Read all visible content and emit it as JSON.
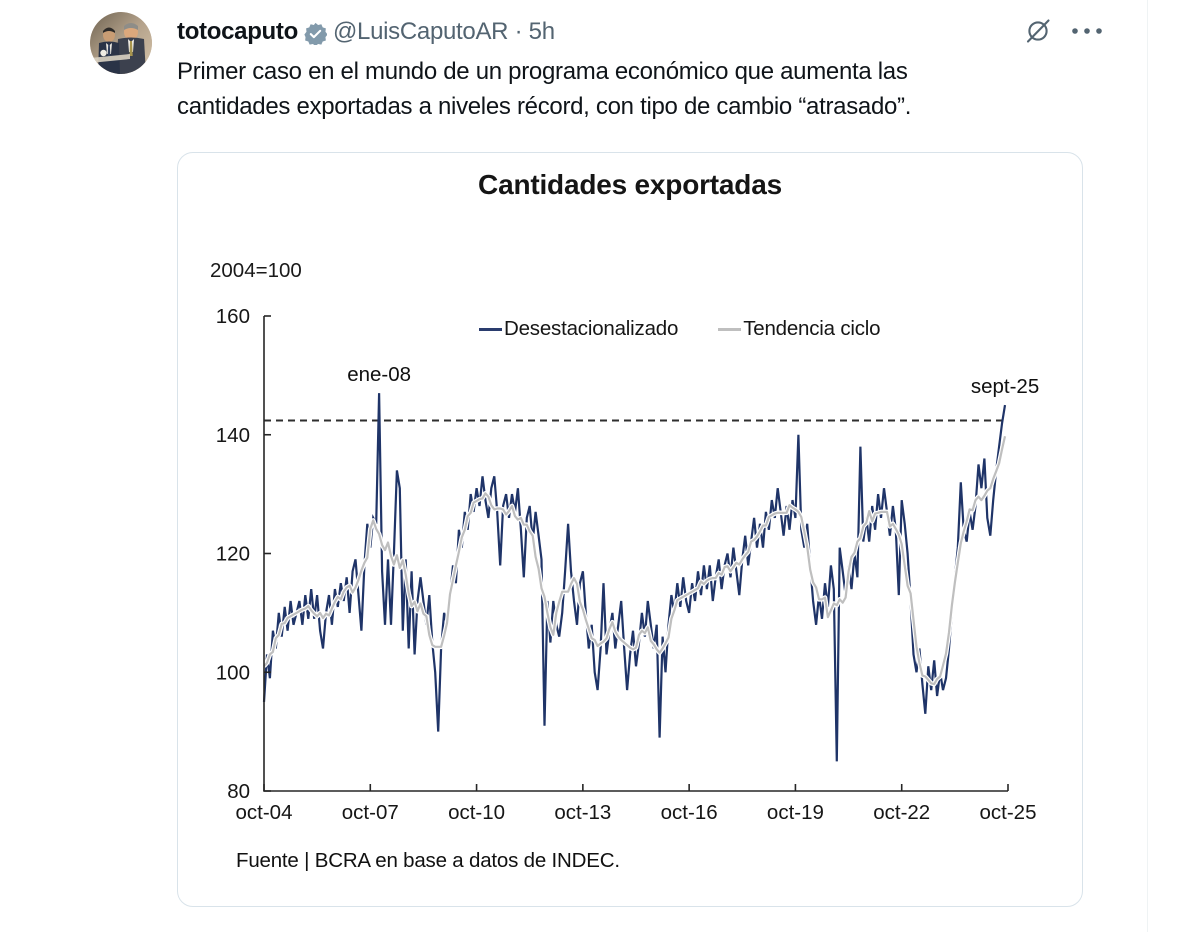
{
  "colors": {
    "text_primary": "#0f1419",
    "text_secondary": "#536471",
    "badge_gray": "#829aab",
    "card_border": "#d9e3ea",
    "series_navy": "#1f3468",
    "series_gray": "#bfbfbf"
  },
  "tweet": {
    "display_name": "totocaputo",
    "handle": "@LuisCaputoAR",
    "separator": "·",
    "time": "5h",
    "verified_badge": "gray-verified-seal",
    "body_lines": [
      "Primer caso en el mundo de un programa económico que aumenta las",
      "cantidades exportadas a niveles récord, con tipo de cambio “atrasado”."
    ]
  },
  "actions": {
    "grok_icon": "grok-slashed-circle",
    "more_icon": "three-dots"
  },
  "chart_data": {
    "type": "line",
    "title": "Cantidades exportadas",
    "unit_label": "2004=100",
    "xlabel": "",
    "ylabel": "",
    "ylim": [
      80,
      160
    ],
    "y_ticks": [
      160,
      140,
      120,
      100,
      80
    ],
    "x_tick_labels": [
      "oct-04",
      "oct-07",
      "oct-10",
      "oct-13",
      "oct-16",
      "oct-19",
      "oct-22",
      "oct-25"
    ],
    "x_frequency": "monthly",
    "x_start_label": "oct-04",
    "x_end_label": "sept-25",
    "grid": false,
    "legend_position": "top-center",
    "reference_line": {
      "value": 142.4,
      "style": "dashed",
      "color": "#2e2e2e"
    },
    "annotations": [
      {
        "label": "ene-08",
        "month_index": 39,
        "value": 147
      },
      {
        "label": "sept-25",
        "month_index": 251,
        "value": 145
      }
    ],
    "source_note": "Fuente | BCRA en base a datos de INDEC.",
    "series": [
      {
        "name": "Desestacionalizado",
        "color": "#1f3468",
        "values": [
          95,
          103,
          99,
          107,
          104,
          110,
          106,
          111,
          107,
          112,
          108,
          110,
          112,
          108,
          113,
          109,
          114,
          109,
          113,
          107,
          104,
          110,
          113,
          108,
          114,
          111,
          115,
          112,
          116,
          110,
          117,
          119,
          113,
          107,
          118,
          125,
          121,
          126,
          125,
          147,
          117,
          108,
          119,
          108,
          120,
          134,
          131,
          107,
          119,
          104,
          117,
          103,
          112,
          116,
          112,
          108,
          113,
          105,
          100,
          90,
          104,
          110,
          108,
          113,
          118,
          115,
          124,
          121,
          127,
          124,
          130,
          127,
          131,
          128,
          133,
          129,
          126,
          131,
          133,
          127,
          118,
          128,
          130,
          126,
          130,
          127,
          131,
          124,
          116,
          126,
          128,
          122,
          127,
          123,
          119,
          91,
          112,
          105,
          112,
          108,
          106,
          110,
          117,
          125,
          117,
          112,
          108,
          115,
          117,
          110,
          104,
          108,
          100,
          97,
          104,
          115,
          103,
          107,
          110,
          104,
          108,
          112,
          104,
          97,
          103,
          107,
          101,
          105,
          110,
          106,
          112,
          108,
          104,
          108,
          89,
          106,
          100,
          108,
          113,
          110,
          115,
          111,
          116,
          112,
          110,
          115,
          112,
          117,
          113,
          118,
          114,
          118,
          112,
          116,
          119,
          114,
          118,
          120,
          116,
          121,
          117,
          113,
          119,
          123,
          118,
          122,
          126,
          121,
          125,
          121,
          127,
          124,
          129,
          126,
          131,
          127,
          123,
          128,
          124,
          129,
          126,
          140,
          124,
          121,
          125,
          118,
          112,
          108,
          113,
          109,
          115,
          111,
          118,
          114,
          85,
          121,
          117,
          113,
          118,
          114,
          120,
          116,
          138,
          122,
          126,
          122,
          128,
          124,
          130,
          126,
          131,
          127,
          123,
          128,
          124,
          113,
          129,
          125,
          120,
          112,
          103,
          100,
          104,
          98,
          93,
          101,
          97,
          102,
          96,
          100,
          97,
          99,
          104,
          110,
          116,
          121,
          132,
          124,
          122,
          127,
          124,
          128,
          135,
          131,
          136,
          126,
          123,
          129,
          134,
          138,
          142,
          145
        ]
      },
      {
        "name": "Tendencia ciclo",
        "color": "#bfbfbf",
        "derivation": "centered moving average of Desestacionalizado",
        "smoothing_window": 7
      }
    ]
  }
}
